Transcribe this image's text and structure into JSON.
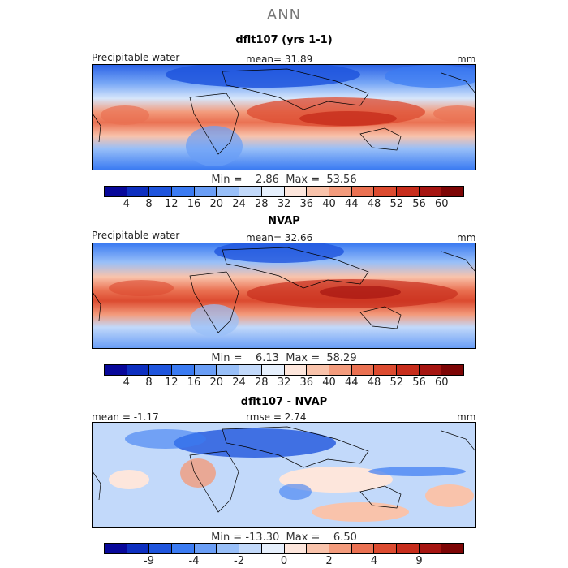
{
  "figure": {
    "title": "ANN"
  },
  "colors": {
    "pw_palette": [
      "#08089a",
      "#0d2fc0",
      "#1f55dd",
      "#3b7bf2",
      "#6a9ef6",
      "#98bff8",
      "#c2d9fa",
      "#e6f0fd",
      "#fde6dc",
      "#f9c3ab",
      "#f39b7c",
      "#ea7152",
      "#dc4b30",
      "#c72d1c",
      "#a61511",
      "#7d0505"
    ],
    "diff_palette": [
      "#08089a",
      "#0d2fc0",
      "#1f55dd",
      "#3b7bf2",
      "#6a9ef6",
      "#98bff8",
      "#c2d9fa",
      "#e6f0fd",
      "#fde6dc",
      "#f9c3ab",
      "#f39b7c",
      "#ea7152",
      "#dc4b30",
      "#c72d1c",
      "#a61511",
      "#7d0505"
    ]
  },
  "panels": [
    {
      "title": "dflt107 (yrs 1-1)",
      "left_label": "Precipitable water",
      "center_label": "mean=  31.89",
      "right_label": "mm",
      "stats": "Min =    2.86  Max =  53.56",
      "ticks": [
        "4",
        "8",
        "12",
        "16",
        "20",
        "24",
        "28",
        "32",
        "36",
        "40",
        "44",
        "48",
        "52",
        "56",
        "60"
      ]
    },
    {
      "title": "NVAP",
      "left_label": "Precipitable water",
      "center_label": "mean=  32.66",
      "right_label": "mm",
      "stats": "Min =    6.13  Max =  58.29",
      "ticks": [
        "4",
        "8",
        "12",
        "16",
        "20",
        "24",
        "28",
        "32",
        "36",
        "40",
        "44",
        "48",
        "52",
        "56",
        "60"
      ]
    },
    {
      "title": "dflt107 - NVAP",
      "left_label": "mean =  -1.17",
      "center_label": "rmse =   2.74",
      "right_label": "mm",
      "stats": "Min = -13.30  Max =    6.50",
      "ticks": [
        "-9",
        "-4",
        "-2",
        "0",
        "2",
        "4",
        "9"
      ]
    }
  ]
}
